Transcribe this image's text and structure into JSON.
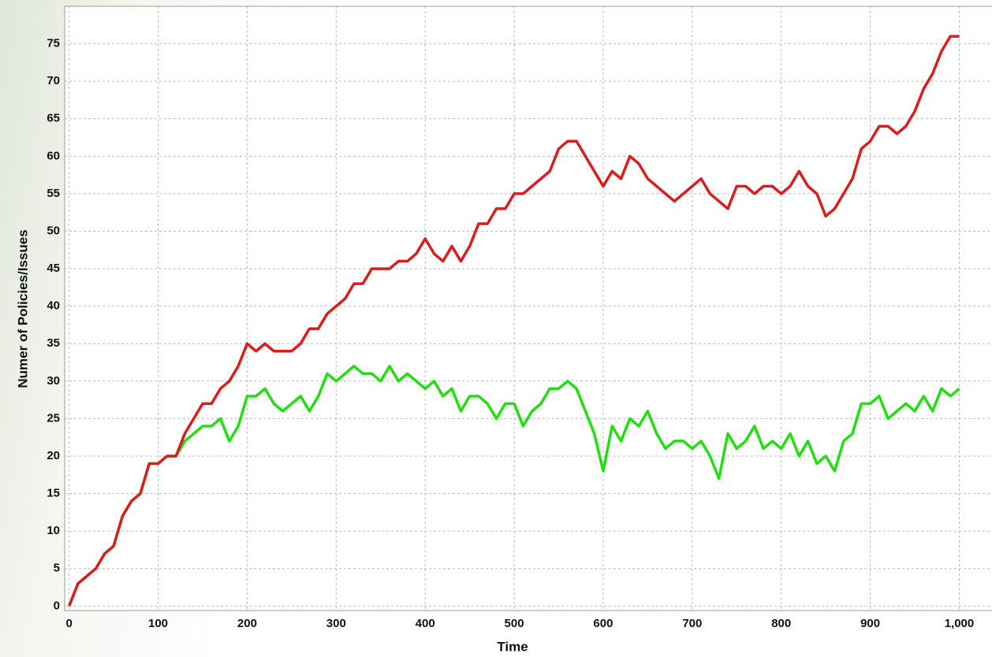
{
  "chart_data": {
    "type": "line",
    "x_label": "Time",
    "y_label": "Numer of Policies/Issues",
    "xlim": [
      -5,
      1035
    ],
    "ylim": [
      -0.6,
      80
    ],
    "xticks": [
      0,
      100,
      200,
      300,
      400,
      500,
      600,
      700,
      800,
      900,
      {
        "value": 1000,
        "label": "1,000"
      }
    ],
    "yticks": [
      0,
      5,
      10,
      15,
      20,
      25,
      30,
      35,
      40,
      45,
      50,
      55,
      60,
      65,
      70,
      75
    ],
    "grid": true,
    "x": [
      0,
      10,
      20,
      30,
      40,
      50,
      60,
      70,
      80,
      90,
      100,
      110,
      120,
      130,
      140,
      150,
      160,
      170,
      180,
      190,
      200,
      210,
      220,
      230,
      240,
      250,
      260,
      270,
      280,
      290,
      300,
      310,
      320,
      330,
      340,
      350,
      360,
      370,
      380,
      390,
      400,
      410,
      420,
      430,
      440,
      450,
      460,
      470,
      480,
      490,
      500,
      510,
      520,
      530,
      540,
      550,
      560,
      570,
      580,
      590,
      600,
      610,
      620,
      630,
      640,
      650,
      660,
      670,
      680,
      690,
      700,
      710,
      720,
      730,
      740,
      750,
      760,
      770,
      780,
      790,
      800,
      810,
      820,
      830,
      840,
      850,
      860,
      870,
      880,
      890,
      900,
      910,
      920,
      930,
      940,
      950,
      960,
      970,
      980,
      990,
      1000
    ],
    "series": [
      {
        "color": "#22e010",
        "values": [
          0,
          3,
          4,
          5,
          7,
          8,
          12,
          14,
          15,
          19,
          19,
          20,
          20,
          22,
          23,
          24,
          24,
          25,
          22,
          24,
          28,
          28,
          29,
          27,
          26,
          27,
          28,
          26,
          28,
          31,
          30,
          31,
          32,
          31,
          31,
          30,
          32,
          30,
          31,
          30,
          29,
          30,
          28,
          29,
          26,
          28,
          28,
          27,
          25,
          27,
          27,
          24,
          26,
          27,
          29,
          29,
          30,
          29,
          26,
          23,
          18,
          24,
          22,
          25,
          24,
          26,
          23,
          21,
          22,
          22,
          21,
          22,
          20,
          17,
          23,
          21,
          22,
          24,
          21,
          22,
          21,
          23,
          20,
          22,
          19,
          20,
          18,
          22,
          23,
          27,
          27,
          28,
          25,
          26,
          27,
          26,
          28,
          26,
          29,
          28,
          29
        ]
      },
      {
        "color": "#dd1c1c",
        "values": [
          0,
          3,
          4,
          5,
          7,
          8,
          12,
          14,
          15,
          19,
          19,
          20,
          20,
          23,
          25,
          27,
          27,
          29,
          30,
          32,
          35,
          34,
          35,
          34,
          34,
          34,
          35,
          37,
          37,
          39,
          40,
          41,
          43,
          43,
          45,
          45,
          45,
          46,
          46,
          47,
          49,
          47,
          46,
          48,
          46,
          48,
          51,
          51,
          53,
          53,
          55,
          55,
          56,
          57,
          58,
          61,
          62,
          62,
          60,
          58,
          56,
          58,
          57,
          60,
          59,
          57,
          56,
          55,
          54,
          55,
          56,
          57,
          55,
          54,
          53,
          56,
          56,
          55,
          56,
          56,
          55,
          56,
          58,
          56,
          55,
          52,
          53,
          55,
          57,
          61,
          62,
          64,
          64,
          63,
          64,
          66,
          69,
          71,
          74,
          76,
          76
        ]
      }
    ]
  }
}
